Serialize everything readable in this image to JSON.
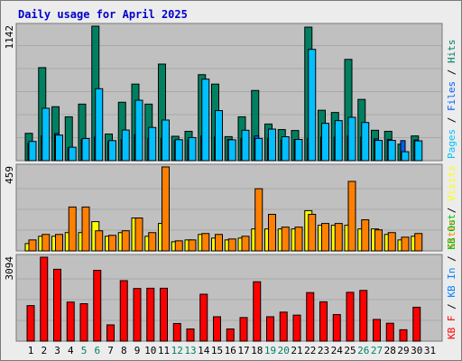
{
  "title": "Daily usage for April 2025",
  "colors": {
    "background": "#ececec",
    "panel": "#c0c0c0",
    "title": "#0000cc",
    "hits": "#008060",
    "files": "#0060ff",
    "pages": "#00c0ff",
    "visits": "#ffff00",
    "sites": "#ff8000",
    "kbin": "#0080ff",
    "kbout": "#00c000",
    "kbf": "#ff0000",
    "weekend": "#008060"
  },
  "chart_data": [
    {
      "type": "bar",
      "name": "hits-files-pages",
      "categories": [
        "1",
        "2",
        "3",
        "4",
        "5",
        "6",
        "7",
        "8",
        "9",
        "10",
        "11",
        "12",
        "13",
        "14",
        "15",
        "16",
        "17",
        "18",
        "19",
        "20",
        "21",
        "22",
        "23",
        "24",
        "25",
        "26",
        "27",
        "28",
        "29",
        "30",
        "31"
      ],
      "ymax_label": "1142",
      "ylim": [
        0,
        1142
      ],
      "legend": [
        "Hits",
        "/",
        "Files",
        "/",
        "Pages"
      ],
      "series": [
        {
          "name": "Hits",
          "values": [
            232,
            790,
            458,
            372,
            480,
            1142,
            226,
            496,
            650,
            480,
            820,
            207,
            249,
            730,
            650,
            204,
            372,
            596,
            311,
            264,
            256,
            1134,
            428,
            409,
            860,
            520,
            258,
            249,
            140,
            210,
            0
          ]
        },
        {
          "name": "Files",
          "values": [
            150,
            210,
            230,
            110,
            180,
            200,
            160,
            180,
            220,
            190,
            190,
            170,
            175,
            210,
            200,
            180,
            190,
            210,
            190,
            175,
            180,
            190,
            200,
            200,
            210,
            200,
            185,
            180,
            170,
            175,
            0
          ]
        },
        {
          "name": "Pages",
          "values": [
            163,
            445,
            217,
            114,
            188,
            611,
            170,
            260,
            513,
            282,
            345,
            178,
            196,
            692,
            425,
            177,
            258,
            189,
            268,
            203,
            180,
            945,
            317,
            340,
            368,
            324,
            172,
            172,
            76,
            168,
            0
          ]
        }
      ]
    },
    {
      "type": "bar",
      "name": "visits-sites",
      "categories": [
        "1",
        "2",
        "3",
        "4",
        "5",
        "6",
        "7",
        "8",
        "9",
        "10",
        "11",
        "12",
        "13",
        "14",
        "15",
        "16",
        "17",
        "18",
        "19",
        "20",
        "21",
        "22",
        "23",
        "24",
        "25",
        "26",
        "27",
        "28",
        "29",
        "30",
        "31"
      ],
      "ymax_label": "459",
      "ylim": [
        0,
        459
      ],
      "legend": [
        "Visits",
        "/",
        "Sites"
      ],
      "series": [
        {
          "name": "Visits",
          "values": [
            40,
            80,
            80,
            100,
            100,
            160,
            80,
            100,
            180,
            80,
            150,
            50,
            60,
            90,
            70,
            60,
            70,
            120,
            120,
            120,
            120,
            220,
            140,
            140,
            140,
            120,
            120,
            90,
            60,
            80,
            0
          ]
        },
        {
          "name": "Sites",
          "values": [
            60,
            90,
            90,
            240,
            240,
            110,
            85,
            110,
            180,
            100,
            459,
            55,
            60,
            95,
            90,
            65,
            80,
            340,
            200,
            130,
            130,
            200,
            150,
            150,
            380,
            170,
            115,
            100,
            75,
            95,
            0
          ]
        }
      ]
    },
    {
      "type": "bar",
      "name": "kbytes",
      "categories": [
        "1",
        "2",
        "3",
        "4",
        "5",
        "6",
        "7",
        "8",
        "9",
        "10",
        "11",
        "12",
        "13",
        "14",
        "15",
        "16",
        "17",
        "18",
        "19",
        "20",
        "21",
        "22",
        "23",
        "24",
        "25",
        "26",
        "27",
        "28",
        "29",
        "30",
        "31"
      ],
      "ymax_label": "3094",
      "ylim": [
        0,
        3094
      ],
      "legend": [
        "KB F",
        "/",
        "KB In",
        "/",
        "KB Out",
        "/",
        "Sites",
        "/",
        "Visits"
      ],
      "series": [
        {
          "name": "KB F",
          "values": [
            1310,
            3094,
            2650,
            1440,
            1380,
            2610,
            600,
            2230,
            1940,
            1950,
            1950,
            650,
            450,
            1730,
            900,
            450,
            870,
            2190,
            900,
            1070,
            960,
            1790,
            1450,
            980,
            1800,
            1870,
            800,
            660,
            420,
            1250,
            0
          ]
        }
      ]
    }
  ],
  "weekend_days": [
    5,
    6,
    12,
    13,
    19,
    20,
    26,
    27
  ]
}
